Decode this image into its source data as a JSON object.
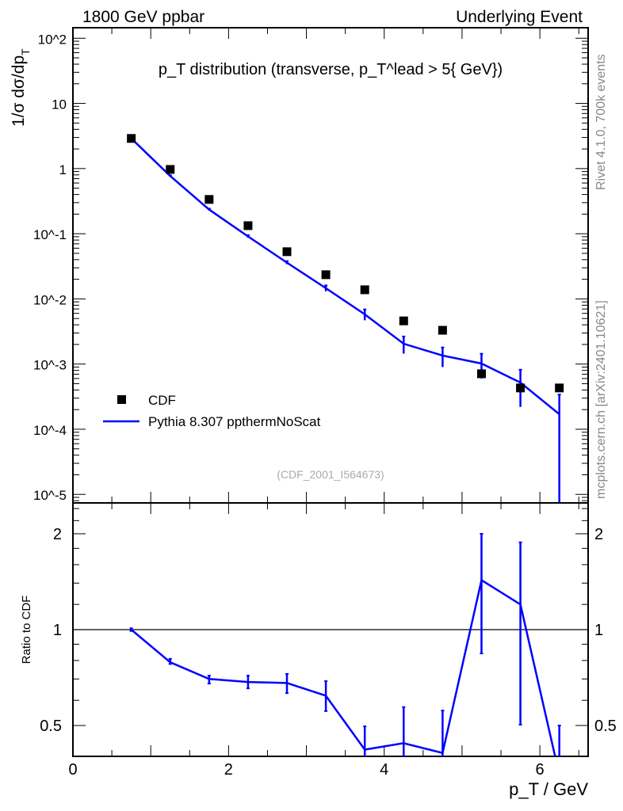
{
  "header": {
    "left": "1800 GeV ppbar",
    "right": "Underlying Event"
  },
  "side_labels": {
    "rivet": "Rivet 4.1.0,  700k events",
    "mcplots": "mcplots.cern.ch [arXiv:2401.10621]"
  },
  "analysis_id": "(CDF_2001_I564673)",
  "colors": {
    "data": "#000000",
    "mc": "#0000ff"
  },
  "chart_data": [
    {
      "type": "scatter",
      "title": "p_T distribution (transverse, p_T^lead > 5{ GeV})",
      "title_parts": {
        "p": "p",
        "sub": "T",
        "mid": " distribution (transverse, p",
        "sup": "lead",
        "end": " > 5{ GeV})"
      },
      "ylabel": "1/σ  dσ/dp_T",
      "ylabel_parts": {
        "main": "1/σ  dσ/dp",
        "sub": "T"
      },
      "yscale": "log",
      "xlim": [
        0,
        6.62
      ],
      "ylim": [
        7.4e-06,
        145
      ],
      "ytick_labels": [
        "10^-5",
        "10^-4",
        "10^-3",
        "10^-2",
        "10^-1",
        "1",
        "10",
        "10^2"
      ],
      "legend": {
        "placement": "bottom-left",
        "entries": [
          "CDF",
          "Pythia 8.307 ppthermNoScat"
        ]
      },
      "x": [
        0.75,
        1.25,
        1.75,
        2.25,
        2.75,
        3.25,
        3.75,
        4.25,
        4.75,
        5.25,
        5.75,
        6.25
      ],
      "series": [
        {
          "name": "CDF",
          "style": "marker",
          "values": [
            2.9,
            0.97,
            0.336,
            0.133,
            0.053,
            0.0235,
            0.0138,
            0.0046,
            0.0033,
            0.00071,
            0.00043,
            0.00043
          ]
        },
        {
          "name": "Pythia 8.307 ppthermNoScat",
          "style": "line",
          "values": [
            2.9,
            0.77,
            0.235,
            0.091,
            0.036,
            0.0146,
            0.0058,
            0.00205,
            0.00135,
            0.00102,
            0.00052,
            0.00017
          ],
          "errors": [
            0.03,
            0.02,
            0.008,
            0.004,
            0.002,
            0.0015,
            0.0011,
            0.0006,
            0.00045,
            0.00042,
            0.0003,
            0.00017
          ]
        }
      ]
    },
    {
      "type": "line",
      "ylabel": "Ratio to CDF",
      "xlabel": "p_T / GeV",
      "xlabel_parts": {
        "p": "p",
        "sub": "T",
        "rest": " / GeV"
      },
      "yscale": "log",
      "xlim": [
        0,
        6.62
      ],
      "ylim": [
        0.4,
        2.5
      ],
      "xticks": [
        0,
        2,
        4,
        6
      ],
      "xtick_labels": [
        "0",
        "2",
        "4",
        "6"
      ],
      "yticks": [
        0.5,
        1,
        2
      ],
      "ytick_labels": [
        "0.5",
        "1",
        "2"
      ],
      "reference_line": 1,
      "x": [
        0.75,
        1.25,
        1.75,
        2.25,
        2.75,
        3.25,
        3.75,
        4.25,
        4.75,
        5.25,
        5.75,
        6.25
      ],
      "series": [
        {
          "name": "Pythia 8.307 ppthermNoScat",
          "values": [
            1.0,
            0.79,
            0.7,
            0.685,
            0.68,
            0.62,
            0.42,
            0.44,
            0.41,
            1.43,
            1.2,
            0.35
          ],
          "err_low": [
            0.99,
            0.78,
            0.677,
            0.654,
            0.632,
            0.555,
            0.3,
            0.3,
            0.3,
            0.842,
            0.503,
            0.3
          ],
          "err_high": [
            1.01,
            0.81,
            0.717,
            0.717,
            0.726,
            0.689,
            0.497,
            0.571,
            0.557,
            2.0,
            1.88,
            0.5
          ]
        }
      ]
    }
  ]
}
